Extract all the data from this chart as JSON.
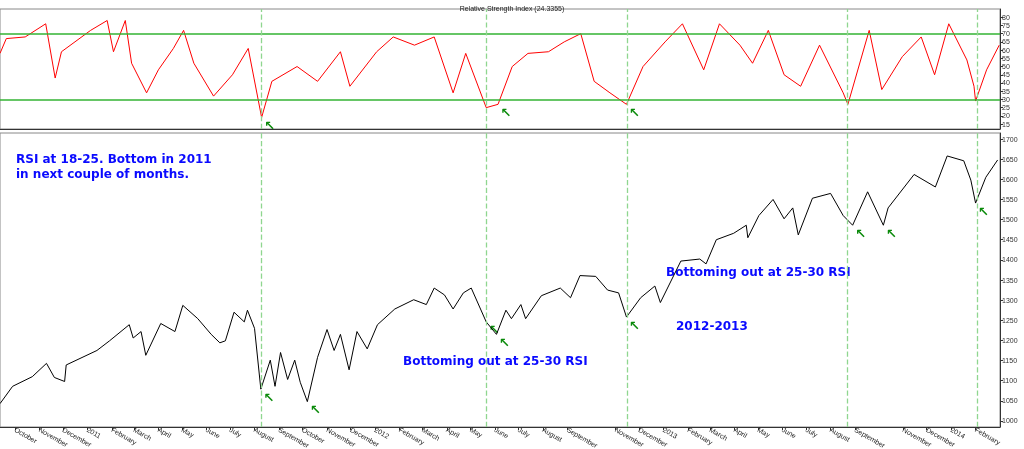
{
  "chart_data": [
    {
      "type": "line",
      "title": "Relative Strength Index (24.3355)",
      "color": "#ff0000",
      "x": [
        "2010-09-12",
        "2010-09-20",
        "2010-10-14",
        "2010-11-09",
        "2010-11-21",
        "2010-11-29",
        "2011-01-05",
        "2011-01-26",
        "2011-02-03",
        "2011-02-18",
        "2011-02-26",
        "2011-03-17",
        "2011-04-01",
        "2011-04-20",
        "2011-05-03",
        "2011-05-16",
        "2011-06-10",
        "2011-07-04",
        "2011-07-24",
        "2011-08-10",
        "2011-08-23",
        "2011-09-24",
        "2011-10-20",
        "2011-11-18",
        "2011-11-30",
        "2012-01-03",
        "2012-01-24",
        "2012-02-20",
        "2012-03-16",
        "2012-04-09",
        "2012-04-25",
        "2012-05-21",
        "2012-06-05",
        "2012-06-23",
        "2012-07-13",
        "2012-08-08",
        "2012-08-28",
        "2012-09-18",
        "2012-10-05",
        "2012-10-25",
        "2012-11-15",
        "2012-12-06",
        "2013-01-03",
        "2013-01-25",
        "2013-02-21",
        "2013-03-13",
        "2013-04-08",
        "2013-04-24",
        "2013-05-14",
        "2013-06-03",
        "2013-06-24",
        "2013-07-18",
        "2013-08-17",
        "2013-08-23",
        "2013-09-19",
        "2013-10-05",
        "2013-10-31",
        "2013-11-24",
        "2013-12-11",
        "2013-12-29",
        "2014-01-21",
        "2014-01-30",
        "2014-02-01",
        "2014-02-15",
        "2014-03-03"
      ],
      "values": [
        58,
        67,
        68,
        76,
        43,
        59,
        72,
        78,
        59,
        78,
        52,
        34,
        48,
        61,
        72,
        52,
        32,
        45,
        61,
        19,
        41,
        50,
        41,
        59,
        38,
        59,
        68,
        63,
        68,
        34,
        58,
        25,
        27,
        50,
        58,
        59,
        65,
        70,
        41,
        34,
        27,
        50,
        65,
        76,
        48,
        76,
        63,
        52,
        72,
        45,
        38,
        63,
        34,
        27,
        72,
        36,
        56,
        68,
        45,
        76,
        54,
        38,
        29,
        48,
        63
      ],
      "xlim": [
        "2010-09-12",
        "2014-03-04"
      ],
      "ylim": [
        12,
        85
      ],
      "yticks": [
        15,
        20,
        25,
        30,
        35,
        40,
        45,
        50,
        55,
        60,
        65,
        70,
        75,
        80
      ],
      "tick_labels": "y",
      "ref_lines": [
        {
          "axis": "y",
          "value": 70,
          "color": "#33b333",
          "line_style": "solid"
        },
        {
          "axis": "y",
          "value": 30,
          "color": "#33b333",
          "line_style": "solid"
        },
        {
          "axis": "x",
          "value": "2011-08-09",
          "color": "#8fd68f",
          "line_style": "dashed"
        },
        {
          "axis": "x",
          "value": "2012-05-21",
          "color": "#8fd68f",
          "line_style": "dashed"
        },
        {
          "axis": "x",
          "value": "2012-11-16",
          "color": "#8fd68f",
          "line_style": "dashed"
        },
        {
          "axis": "x",
          "value": "2013-08-22",
          "color": "#8fd68f",
          "line_style": "dashed"
        },
        {
          "axis": "x",
          "value": "2014-02-03",
          "color": "#8fd68f",
          "line_style": "dashed"
        }
      ],
      "annotations": [
        {
          "text": "↖",
          "x": "2011-08-10",
          "y": 19
        },
        {
          "text": "↖",
          "x": "2012-06-05",
          "y": 27
        },
        {
          "text": "↖",
          "x": "2012-11-15",
          "y": 27
        }
      ]
    },
    {
      "type": "line",
      "color": "#000000",
      "x": [
        "2010-09-12",
        "2010-09-28",
        "2010-10-23",
        "2010-11-10",
        "2010-11-20",
        "2010-12-03",
        "2010-12-05",
        "2011-01-13",
        "2011-01-29",
        "2011-02-23",
        "2011-02-28",
        "2011-03-10",
        "2011-03-16",
        "2011-04-04",
        "2011-04-22",
        "2011-05-02",
        "2011-05-21",
        "2011-06-07",
        "2011-06-18",
        "2011-06-25",
        "2011-07-06",
        "2011-07-19",
        "2011-07-23",
        "2011-08-01",
        "2011-08-09",
        "2011-08-21",
        "2011-08-27",
        "2011-09-03",
        "2011-09-12",
        "2011-09-21",
        "2011-09-28",
        "2011-10-07",
        "2011-10-20",
        "2011-11-01",
        "2011-11-10",
        "2011-11-18",
        "2011-11-29",
        "2011-12-09",
        "2011-12-22",
        "2012-01-04",
        "2012-01-26",
        "2012-02-19",
        "2012-03-06",
        "2012-03-16",
        "2012-03-29",
        "2012-04-09",
        "2012-04-22",
        "2012-05-02",
        "2012-05-21",
        "2012-06-03",
        "2012-06-15",
        "2012-06-22",
        "2012-07-04",
        "2012-07-10",
        "2012-07-30",
        "2012-08-23",
        "2012-09-05",
        "2012-09-17",
        "2012-10-07",
        "2012-10-22",
        "2012-11-05",
        "2012-11-15",
        "2012-12-03",
        "2012-12-21",
        "2012-12-28",
        "2013-01-23",
        "2013-02-16",
        "2013-02-24",
        "2013-03-09",
        "2013-03-31",
        "2013-04-16",
        "2013-04-18",
        "2013-05-02",
        "2013-05-20",
        "2013-06-03",
        "2013-06-14",
        "2013-06-21",
        "2013-07-09",
        "2013-08-01",
        "2013-08-17",
        "2013-08-29",
        "2013-09-17",
        "2013-10-07",
        "2013-10-13",
        "2013-11-15",
        "2013-12-12",
        "2013-12-27",
        "2014-01-17",
        "2014-01-26",
        "2014-02-01",
        "2014-02-14",
        "2014-03-01"
      ],
      "values": [
        1043,
        1086,
        1110,
        1143,
        1108,
        1098,
        1139,
        1175,
        1199,
        1239,
        1206,
        1222,
        1163,
        1242,
        1222,
        1287,
        1254,
        1215,
        1194,
        1199,
        1270,
        1246,
        1275,
        1230,
        1079,
        1151,
        1086,
        1170,
        1103,
        1151,
        1096,
        1048,
        1158,
        1227,
        1175,
        1215,
        1127,
        1222,
        1179,
        1239,
        1278,
        1301,
        1289,
        1330,
        1313,
        1278,
        1318,
        1330,
        1246,
        1215,
        1275,
        1254,
        1289,
        1254,
        1311,
        1330,
        1306,
        1361,
        1359,
        1325,
        1318,
        1258,
        1306,
        1335,
        1294,
        1397,
        1402,
        1390,
        1450,
        1466,
        1486,
        1455,
        1510,
        1550,
        1502,
        1529,
        1462,
        1553,
        1565,
        1510,
        1486,
        1569,
        1486,
        1529,
        1612,
        1581,
        1658,
        1646,
        1598,
        1541,
        1605,
        1648
      ],
      "xlim": [
        "2010-09-12",
        "2014-03-04"
      ],
      "ylim": [
        985,
        1715
      ],
      "yticks": [
        1000,
        1050,
        1100,
        1150,
        1200,
        1250,
        1300,
        1350,
        1400,
        1450,
        1500,
        1550,
        1600,
        1650,
        1700
      ],
      "xticks": [
        {
          "value": "2010-10-01",
          "label": "October"
        },
        {
          "value": "2010-11-01",
          "label": "November"
        },
        {
          "value": "2010-12-01",
          "label": "December"
        },
        {
          "value": "2011-01-01",
          "label": "2011"
        },
        {
          "value": "2011-02-01",
          "label": "February"
        },
        {
          "value": "2011-03-01",
          "label": "March"
        },
        {
          "value": "2011-04-01",
          "label": "April"
        },
        {
          "value": "2011-05-01",
          "label": "May"
        },
        {
          "value": "2011-06-01",
          "label": "June"
        },
        {
          "value": "2011-07-01",
          "label": "July"
        },
        {
          "value": "2011-08-01",
          "label": "August"
        },
        {
          "value": "2011-09-01",
          "label": "September"
        },
        {
          "value": "2011-10-01",
          "label": "October"
        },
        {
          "value": "2011-11-01",
          "label": "November"
        },
        {
          "value": "2011-12-01",
          "label": "December"
        },
        {
          "value": "2012-01-01",
          "label": "2012"
        },
        {
          "value": "2012-02-01",
          "label": "February"
        },
        {
          "value": "2012-03-01",
          "label": "March"
        },
        {
          "value": "2012-04-01",
          "label": "April"
        },
        {
          "value": "2012-05-01",
          "label": "May"
        },
        {
          "value": "2012-06-01",
          "label": "June"
        },
        {
          "value": "2012-07-01",
          "label": "July"
        },
        {
          "value": "2012-08-01",
          "label": "August"
        },
        {
          "value": "2012-09-01",
          "label": "September"
        },
        {
          "value": "2012-11-01",
          "label": "November"
        },
        {
          "value": "2012-12-01",
          "label": "December"
        },
        {
          "value": "2013-01-01",
          "label": "2013"
        },
        {
          "value": "2013-02-01",
          "label": "February"
        },
        {
          "value": "2013-03-01",
          "label": "March"
        },
        {
          "value": "2013-04-01",
          "label": "April"
        },
        {
          "value": "2013-05-01",
          "label": "May"
        },
        {
          "value": "2013-06-01",
          "label": "June"
        },
        {
          "value": "2013-07-01",
          "label": "July"
        },
        {
          "value": "2013-08-01",
          "label": "August"
        },
        {
          "value": "2013-09-01",
          "label": "September"
        },
        {
          "value": "2013-11-01",
          "label": "November"
        },
        {
          "value": "2013-12-01",
          "label": "December"
        },
        {
          "value": "2014-01-01",
          "label": "2014"
        },
        {
          "value": "2014-02-01",
          "label": "February"
        }
      ],
      "ref_lines": [
        {
          "axis": "x",
          "value": "2011-08-09",
          "color": "#8fd68f",
          "line_style": "dashed"
        },
        {
          "axis": "x",
          "value": "2012-05-21",
          "color": "#8fd68f",
          "line_style": "dashed"
        },
        {
          "axis": "x",
          "value": "2012-11-16",
          "color": "#8fd68f",
          "line_style": "dashed"
        },
        {
          "axis": "x",
          "value": "2013-08-22",
          "color": "#8fd68f",
          "line_style": "dashed"
        },
        {
          "axis": "x",
          "value": "2014-02-03",
          "color": "#8fd68f",
          "line_style": "dashed"
        }
      ],
      "annotations": [
        "RSI at 18-25. Bottom in 2011\nin next couple of months.",
        "Bottoming out at 25-30 RSI",
        "Bottoming out at 25-30 RSI",
        "2012-2013",
        {
          "text": "↖",
          "x": "2011-08-09",
          "y": 1079
        },
        {
          "text": "↖",
          "x": "2011-10-07",
          "y": 1048
        },
        {
          "text": "↖",
          "x": "2012-05-21",
          "y": 1246
        },
        {
          "text": "↖",
          "x": "2012-06-03",
          "y": 1215
        },
        {
          "text": "↖",
          "x": "2012-11-15",
          "y": 1258
        },
        {
          "text": "↖",
          "x": "2013-08-29",
          "y": 1486
        },
        {
          "text": "↖",
          "x": "2013-10-07",
          "y": 1486
        },
        {
          "text": "↖",
          "x": "2014-02-01",
          "y": 1541
        }
      ]
    }
  ]
}
